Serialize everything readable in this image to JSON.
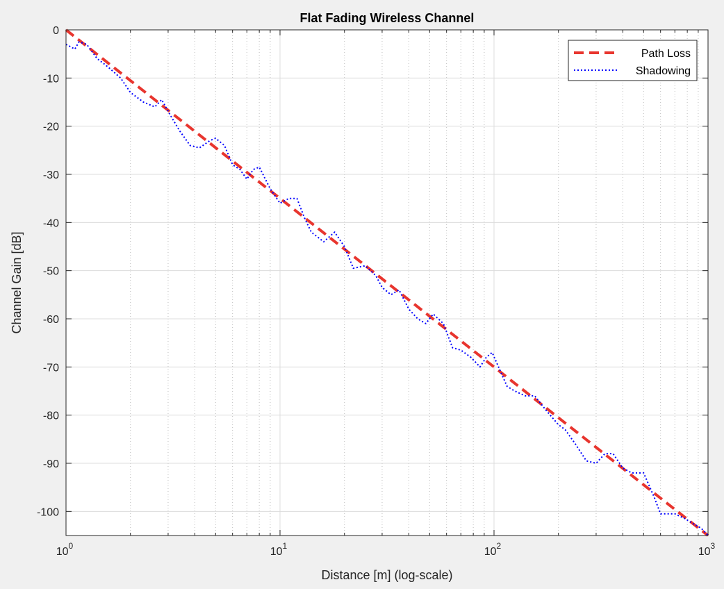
{
  "chart_data": {
    "type": "line",
    "title": "Flat Fading Wireless Channel",
    "xlabel": "Distance [m] (log-scale)",
    "ylabel": "Channel Gain [dB]",
    "x_scale": "log",
    "xlim": [
      1,
      1000
    ],
    "ylim": [
      -105,
      0
    ],
    "x_ticks": [
      1,
      10,
      100,
      1000
    ],
    "x_tick_labels": [
      {
        "base": "10",
        "exp": "0"
      },
      {
        "base": "10",
        "exp": "1"
      },
      {
        "base": "10",
        "exp": "2"
      },
      {
        "base": "10",
        "exp": "3"
      }
    ],
    "y_ticks": [
      0,
      -10,
      -20,
      -30,
      -40,
      -50,
      -60,
      -70,
      -80,
      -90,
      -100
    ],
    "grid": true,
    "minor_grid": true,
    "legend_position": "top-right",
    "series": [
      {
        "name": "Path Loss",
        "color": "#e8352e",
        "style": "dashed",
        "x": [
          1,
          1000
        ],
        "y": [
          0,
          -105
        ]
      },
      {
        "name": "Shadowing",
        "color": "#0000ff",
        "style": "dotted",
        "x": [
          1,
          1.1,
          1.15,
          1.25,
          1.4,
          1.5,
          1.6,
          1.8,
          2.0,
          2.3,
          2.6,
          2.8,
          3.1,
          3.4,
          3.8,
          4.2,
          4.7,
          5.0,
          5.5,
          6.0,
          6.5,
          7.0,
          7.5,
          8.0,
          9.0,
          10.0,
          11.0,
          12.0,
          13.0,
          14.0,
          16.0,
          18.0,
          20.0,
          22.0,
          25.0,
          28.0,
          30.0,
          33.0,
          36.0,
          40.0,
          44.0,
          48.0,
          52.0,
          58.0,
          64.0,
          70.0,
          78.0,
          86.0,
          92.0,
          98.0,
          105.0,
          115.0,
          125.0,
          140.0,
          155.0,
          175.0,
          200.0,
          215.0,
          240.0,
          270.0,
          300.0,
          330.0,
          360.0,
          400.0,
          440.0,
          500.0,
          560.0,
          600.0,
          700.0,
          780.0,
          850.0,
          930.0,
          1000.0
        ],
        "y": [
          -3,
          -4,
          -2.5,
          -3,
          -6,
          -7,
          -8,
          -10,
          -13,
          -15,
          -16,
          -14.5,
          -18,
          -21,
          -24,
          -24.5,
          -23,
          -22.5,
          -24,
          -28,
          -29,
          -31,
          -29,
          -28.5,
          -33,
          -36,
          -35,
          -35,
          -39,
          -42,
          -44,
          -42,
          -45,
          -49.5,
          -49,
          -51,
          -53.5,
          -55,
          -54,
          -58,
          -60,
          -61,
          -59,
          -61,
          -66,
          -66.5,
          -68,
          -70,
          -68,
          -67,
          -70,
          -74,
          -75,
          -76,
          -76,
          -79,
          -82,
          -83,
          -86,
          -89.5,
          -90,
          -88,
          -88,
          -91,
          -92,
          -92,
          -97,
          -100.5,
          -100.5,
          -101.5,
          -102.5,
          -103.5,
          -105
        ]
      }
    ]
  }
}
